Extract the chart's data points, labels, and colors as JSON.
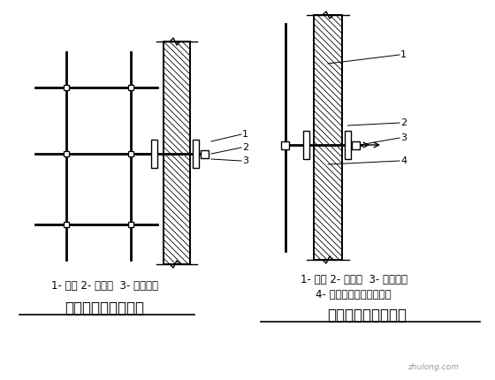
{
  "bg_color": "#ffffff",
  "line_color": "#000000",
  "title_left": "双排脚手架（平面）",
  "title_right": "门窗洞口处的连墙点",
  "label_left": "1- 垫木 2- 短钢管  3- 直角扣件",
  "label_right_1": "1- 垫木 2- 短钢管  3- 直角扣件",
  "label_right_2": "4- 连向立柱或横向水平杆",
  "font_size_title": 12,
  "font_size_label": 8.5,
  "font_size_num": 8
}
